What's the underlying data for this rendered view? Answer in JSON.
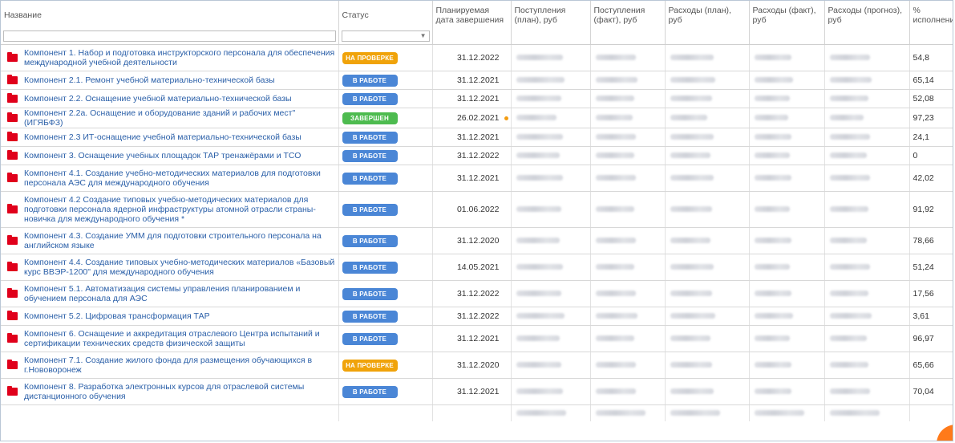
{
  "columns": {
    "name": "Название",
    "status": "Статус",
    "planned_date": "Планируемая дата завершения",
    "income_plan": "Поступления (план), руб",
    "income_fact": "Поступления (факт), руб",
    "expense_plan": "Расходы (план), руб",
    "expense_fact": "Расходы (факт), руб",
    "expense_forecast": "Расходы (прогноз), руб",
    "pct": "% исполнени"
  },
  "status_colors": {
    "in_work": "#4a86d6",
    "on_review": "#f0a30a",
    "completed": "#4dbb4f"
  },
  "rows": [
    {
      "name": "Компонент 1. Набор и подготовка инструкторского персонала для обеспечения международной учебной деятельности",
      "status": "НА ПРОВЕРКЕ",
      "status_type": "on_review",
      "date": "31.12.2022",
      "pct": "54,8"
    },
    {
      "name": "Компонент 2.1. Ремонт учебной материально-технической базы",
      "status": "В РАБОТЕ",
      "status_type": "in_work",
      "date": "31.12.2021",
      "pct": "65,14"
    },
    {
      "name": "Компонент 2.2. Оснащение учебной материально-технической базы",
      "status": "В РАБОТЕ",
      "status_type": "in_work",
      "date": "31.12.2021",
      "pct": "52,08"
    },
    {
      "name": "Компонент 2.2а. Оснащение и оборудование зданий и рабочих мест\" (ИГЯБФЗ)",
      "status": "ЗАВЕРШЕН",
      "status_type": "completed",
      "date": "26.02.2021",
      "pct": "97,23",
      "dot": true
    },
    {
      "name": "Компонент 2.3 ИТ-оснащение учебной материально-технической базы",
      "status": "В РАБОТЕ",
      "status_type": "in_work",
      "date": "31.12.2021",
      "pct": "24,1"
    },
    {
      "name": "Компонент 3. Оснащение учебных площадок ТАР тренажёрами и ТСО",
      "status": "В РАБОТЕ",
      "status_type": "in_work",
      "date": "31.12.2022",
      "pct": "0"
    },
    {
      "name": "Компонент 4.1. Создание учебно-методических материалов для подготовки персонала АЭС для международного обучения",
      "status": "В РАБОТЕ",
      "status_type": "in_work",
      "date": "31.12.2021",
      "pct": "42,02"
    },
    {
      "name": "Компонент 4.2 Создание типовых учебно-методических материалов для подготовки персонала ядерной инфраструктуры атомной отрасли страны-новичка для международного обучения *",
      "status": "В РАБОТЕ",
      "status_type": "in_work",
      "date": "01.06.2022",
      "pct": "91,92"
    },
    {
      "name": "Компонент 4.3. Создание УММ для подготовки строительного персонала на английском языке",
      "status": "В РАБОТЕ",
      "status_type": "in_work",
      "date": "31.12.2020",
      "pct": "78,66"
    },
    {
      "name": "Компонент 4.4. Создание типовых учебно-методических материалов «Базовый курс ВВЭР-1200\" для международного обучения",
      "status": "В РАБОТЕ",
      "status_type": "in_work",
      "date": "14.05.2021",
      "pct": "51,24"
    },
    {
      "name": "Компонент 5.1. Автоматизация системы управления планированием и обучением персонала для АЭС",
      "status": "В РАБОТЕ",
      "status_type": "in_work",
      "date": "31.12.2022",
      "pct": "17,56"
    },
    {
      "name": "Компонент 5.2. Цифровая трансформация ТАР",
      "status": "В РАБОТЕ",
      "status_type": "in_work",
      "date": "31.12.2022",
      "pct": "3,61"
    },
    {
      "name": "Компонент 6. Оснащение и аккредитация отраслевого Центра испытаний и сертификации технических средств физической защиты",
      "status": "В РАБОТЕ",
      "status_type": "in_work",
      "date": "31.12.2021",
      "pct": "96,97"
    },
    {
      "name": "Компонент 7.1. Создание жилого фонда для размещения обучающихся в г.Нововоронеж",
      "status": "НА ПРОВЕРКЕ",
      "status_type": "on_review",
      "date": "31.12.2020",
      "pct": "65,66"
    },
    {
      "name": "Компонент 8. Разработка электронных курсов для отраслевой системы дистанционного обучения",
      "status": "В РАБОТЕ",
      "status_type": "in_work",
      "date": "31.12.2021",
      "pct": "70,04"
    }
  ]
}
